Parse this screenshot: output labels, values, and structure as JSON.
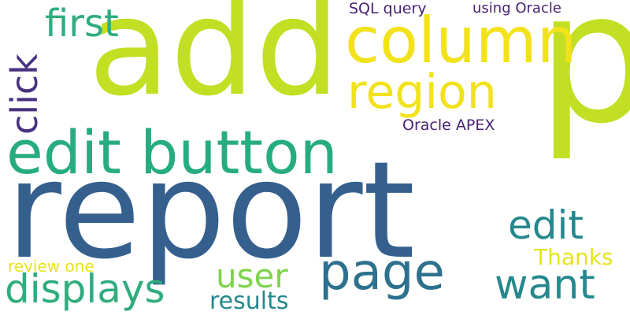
{
  "cloud": {
    "words": {
      "add": "add",
      "p": "p",
      "column": "column",
      "region": "region",
      "first": "first",
      "click": "click",
      "sql_query": "SQL query",
      "using_oracle": "using Oracle",
      "oracle_apex": "Oracle APEX",
      "edit_button": "edit button",
      "report": "report",
      "edit": "edit",
      "thanks": "Thanks",
      "page": "page",
      "want": "want",
      "user": "user",
      "review_one": "review one",
      "displays": "displays",
      "results": "results"
    },
    "colors": {
      "background": "#ffffff",
      "lime": "#c2df23",
      "yellow": "#f2e21b",
      "navy": "#355f8d",
      "teal": "#27ac82",
      "green": "#30ad7e",
      "sea": "#25888e",
      "olive": "#7fd34e",
      "dark_teal": "#2c718e",
      "purple": "#482173",
      "indigo": "#46327e",
      "pale_yellow": "#e7e419"
    }
  }
}
